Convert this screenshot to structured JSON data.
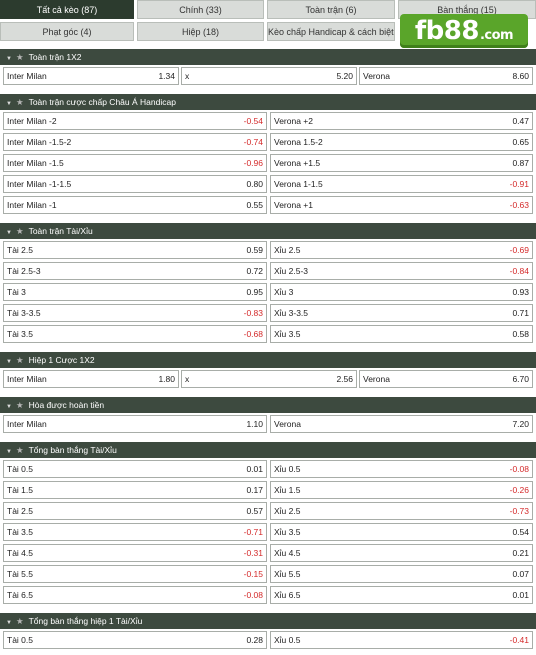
{
  "tabs": [
    {
      "label": "Tất cả kèo (87)",
      "active": true
    },
    {
      "label": "Chính (33)"
    },
    {
      "label": "Toàn trận (6)"
    },
    {
      "label": "Bàn thắng (15)"
    },
    {
      "label": "Phạt góc (4)"
    },
    {
      "label": "Hiệp (18)"
    },
    {
      "label": "Kèo chấp Handicap & cách biệt (5)"
    }
  ],
  "logo": {
    "main": "fb88",
    "domain": ".com"
  },
  "sections": [
    {
      "title": "Toàn trận 1X2",
      "layout": "three",
      "rows": [
        [
          {
            "name": "Inter Milan",
            "odd": "1.34"
          },
          {
            "name": "x",
            "odd": "5.20"
          },
          {
            "name": "Verona",
            "odd": "8.60"
          }
        ]
      ]
    },
    {
      "title": "Toàn trận cược chấp Châu Á Handicap",
      "layout": "two",
      "rows": [
        [
          {
            "name": "Inter Milan -2",
            "odd": "-0.54"
          },
          {
            "name": "Verona +2",
            "odd": "0.47"
          }
        ],
        [
          {
            "name": "Inter Milan -1.5-2",
            "odd": "-0.74"
          },
          {
            "name": "Verona 1.5-2",
            "odd": "0.65"
          }
        ],
        [
          {
            "name": "Inter Milan -1.5",
            "odd": "-0.96"
          },
          {
            "name": "Verona +1.5",
            "odd": "0.87"
          }
        ],
        [
          {
            "name": "Inter Milan -1-1.5",
            "odd": "0.80"
          },
          {
            "name": "Verona 1-1.5",
            "odd": "-0.91"
          }
        ],
        [
          {
            "name": "Inter Milan -1",
            "odd": "0.55"
          },
          {
            "name": "Verona +1",
            "odd": "-0.63"
          }
        ]
      ]
    },
    {
      "title": "Toàn trận Tài/Xỉu",
      "layout": "two",
      "rows": [
        [
          {
            "name": "Tài 2.5",
            "odd": "0.59"
          },
          {
            "name": "Xỉu 2.5",
            "odd": "-0.69"
          }
        ],
        [
          {
            "name": "Tài 2.5-3",
            "odd": "0.72"
          },
          {
            "name": "Xỉu 2.5-3",
            "odd": "-0.84"
          }
        ],
        [
          {
            "name": "Tài 3",
            "odd": "0.95"
          },
          {
            "name": "Xỉu 3",
            "odd": "0.93"
          }
        ],
        [
          {
            "name": "Tài 3-3.5",
            "odd": "-0.83"
          },
          {
            "name": "Xỉu 3-3.5",
            "odd": "0.71"
          }
        ],
        [
          {
            "name": "Tài 3.5",
            "odd": "-0.68"
          },
          {
            "name": "Xỉu 3.5",
            "odd": "0.58"
          }
        ]
      ]
    },
    {
      "title": "Hiệp 1 Cược 1X2",
      "layout": "three",
      "rows": [
        [
          {
            "name": "Inter Milan",
            "odd": "1.80"
          },
          {
            "name": "x",
            "odd": "2.56"
          },
          {
            "name": "Verona",
            "odd": "6.70"
          }
        ]
      ]
    },
    {
      "title": "Hòa được hoàn tiền",
      "layout": "two",
      "rows": [
        [
          {
            "name": "Inter Milan",
            "odd": "1.10"
          },
          {
            "name": "Verona",
            "odd": "7.20"
          }
        ]
      ]
    },
    {
      "title": "Tổng bàn thắng Tài/Xỉu",
      "layout": "two",
      "rows": [
        [
          {
            "name": "Tài 0.5",
            "odd": "0.01"
          },
          {
            "name": "Xỉu 0.5",
            "odd": "-0.08"
          }
        ],
        [
          {
            "name": "Tài 1.5",
            "odd": "0.17"
          },
          {
            "name": "Xỉu 1.5",
            "odd": "-0.26"
          }
        ],
        [
          {
            "name": "Tài 2.5",
            "odd": "0.57"
          },
          {
            "name": "Xỉu 2.5",
            "odd": "-0.73"
          }
        ],
        [
          {
            "name": "Tài 3.5",
            "odd": "-0.71"
          },
          {
            "name": "Xỉu 3.5",
            "odd": "0.54"
          }
        ],
        [
          {
            "name": "Tài 4.5",
            "odd": "-0.31"
          },
          {
            "name": "Xỉu 4.5",
            "odd": "0.21"
          }
        ],
        [
          {
            "name": "Tài 5.5",
            "odd": "-0.15"
          },
          {
            "name": "Xỉu 5.5",
            "odd": "0.07"
          }
        ],
        [
          {
            "name": "Tài 6.5",
            "odd": "-0.08"
          },
          {
            "name": "Xỉu 6.5",
            "odd": "0.01"
          }
        ]
      ]
    },
    {
      "title": "Tổng bàn thắng hiệp 1 Tài/Xỉu",
      "layout": "two",
      "rows": [
        [
          {
            "name": "Tài 0.5",
            "odd": "0.28"
          },
          {
            "name": "Xỉu 0.5",
            "odd": "-0.41"
          }
        ]
      ]
    }
  ],
  "colors": {
    "header": "#3d4a3f",
    "active_tab": "#2c3b2e",
    "negative": "#d42a2a",
    "logo": "#5aa52a"
  }
}
